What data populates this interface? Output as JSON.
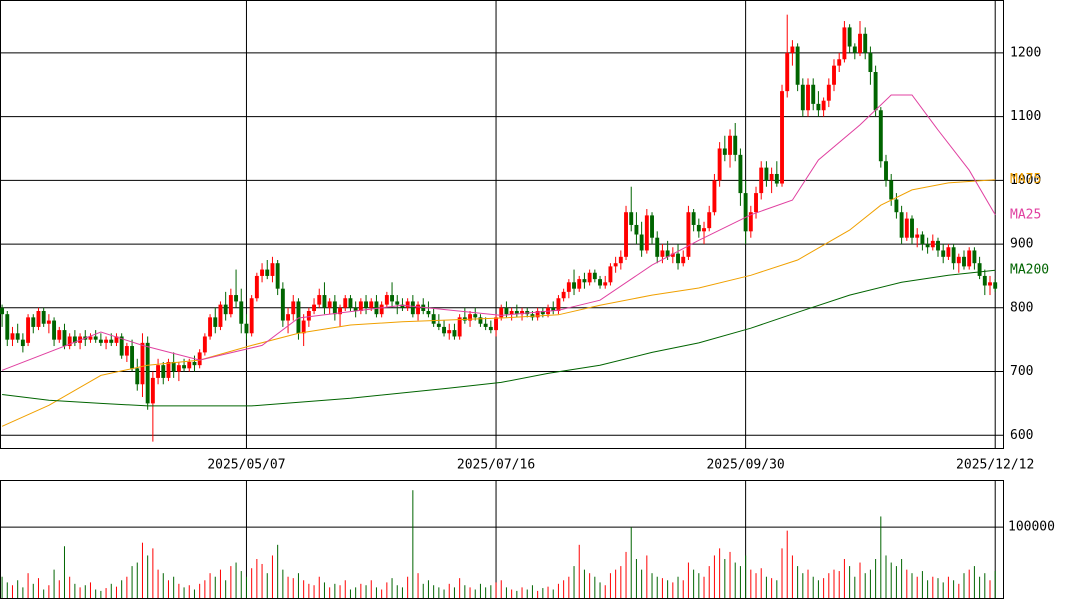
{
  "chart_data": {
    "type": "candlestick",
    "up_color": "#ff0000",
    "down_color": "#006400",
    "ylim": [
      580,
      1283
    ],
    "yticks": [
      600,
      700,
      800,
      900,
      1000,
      1100,
      1200
    ],
    "xlim": [
      -0.4,
      192.5
    ],
    "xticks": [
      {
        "value": 47,
        "label": "2025/05/07"
      },
      {
        "value": 95,
        "label": "2025/07/16"
      },
      {
        "value": 143,
        "label": "2025/09/30"
      },
      {
        "value": 191,
        "label": "2025/12/12"
      }
    ],
    "grid": true,
    "ohlc": [
      [
        800,
        805,
        770,
        790
      ],
      [
        790,
        795,
        740,
        750
      ],
      [
        750,
        770,
        740,
        760
      ],
      [
        760,
        775,
        745,
        750
      ],
      [
        750,
        760,
        730,
        740
      ],
      [
        745,
        790,
        740,
        785
      ],
      [
        785,
        790,
        760,
        770
      ],
      [
        770,
        800,
        765,
        795
      ],
      [
        795,
        800,
        770,
        775
      ],
      [
        775,
        790,
        760,
        780
      ],
      [
        780,
        785,
        740,
        750
      ],
      [
        750,
        770,
        745,
        765
      ],
      [
        765,
        775,
        735,
        740
      ],
      [
        740,
        760,
        735,
        755
      ],
      [
        755,
        765,
        740,
        745
      ],
      [
        745,
        760,
        735,
        755
      ],
      [
        755,
        765,
        740,
        750
      ],
      [
        750,
        760,
        745,
        755
      ],
      [
        755,
        765,
        745,
        750
      ],
      [
        750,
        760,
        740,
        745
      ],
      [
        745,
        755,
        735,
        750
      ],
      [
        750,
        760,
        740,
        745
      ],
      [
        745,
        760,
        740,
        755
      ],
      [
        755,
        760,
        720,
        725
      ],
      [
        725,
        745,
        715,
        740
      ],
      [
        740,
        750,
        700,
        705
      ],
      [
        705,
        720,
        670,
        680
      ],
      [
        680,
        760,
        660,
        745
      ],
      [
        745,
        755,
        640,
        650
      ],
      [
        650,
        700,
        590,
        690
      ],
      [
        690,
        720,
        680,
        710
      ],
      [
        710,
        715,
        680,
        690
      ],
      [
        690,
        720,
        685,
        715
      ],
      [
        715,
        730,
        690,
        700
      ],
      [
        700,
        715,
        685,
        710
      ],
      [
        710,
        720,
        700,
        705
      ],
      [
        705,
        720,
        700,
        715
      ],
      [
        715,
        725,
        700,
        710
      ],
      [
        710,
        735,
        705,
        730
      ],
      [
        730,
        760,
        725,
        755
      ],
      [
        755,
        790,
        750,
        785
      ],
      [
        785,
        800,
        760,
        770
      ],
      [
        770,
        810,
        765,
        805
      ],
      [
        805,
        825,
        780,
        790
      ],
      [
        790,
        830,
        785,
        820
      ],
      [
        820,
        860,
        800,
        810
      ],
      [
        810,
        830,
        760,
        775
      ],
      [
        775,
        790,
        750,
        760
      ],
      [
        760,
        820,
        755,
        815
      ],
      [
        815,
        855,
        810,
        850
      ],
      [
        850,
        870,
        840,
        860
      ],
      [
        860,
        875,
        845,
        850
      ],
      [
        850,
        880,
        840,
        870
      ],
      [
        870,
        875,
        820,
        830
      ],
      [
        830,
        840,
        770,
        780
      ],
      [
        780,
        800,
        760,
        790
      ],
      [
        790,
        820,
        780,
        810
      ],
      [
        810,
        815,
        750,
        760
      ],
      [
        760,
        790,
        740,
        780
      ],
      [
        780,
        800,
        770,
        795
      ],
      [
        795,
        815,
        790,
        805
      ],
      [
        805,
        830,
        800,
        820
      ],
      [
        820,
        840,
        790,
        800
      ],
      [
        800,
        815,
        790,
        810
      ],
      [
        810,
        820,
        780,
        790
      ],
      [
        790,
        805,
        770,
        800
      ],
      [
        800,
        820,
        795,
        815
      ],
      [
        815,
        820,
        795,
        800
      ],
      [
        800,
        810,
        785,
        795
      ],
      [
        795,
        815,
        790,
        810
      ],
      [
        810,
        820,
        790,
        800
      ],
      [
        800,
        815,
        795,
        810
      ],
      [
        810,
        820,
        785,
        790
      ],
      [
        790,
        810,
        785,
        805
      ],
      [
        805,
        825,
        800,
        820
      ],
      [
        820,
        840,
        800,
        810
      ],
      [
        810,
        820,
        790,
        805
      ],
      [
        805,
        815,
        795,
        800
      ],
      [
        800,
        815,
        795,
        810
      ],
      [
        810,
        820,
        785,
        790
      ],
      [
        790,
        810,
        780,
        805
      ],
      [
        805,
        815,
        790,
        795
      ],
      [
        795,
        810,
        785,
        790
      ],
      [
        790,
        800,
        770,
        775
      ],
      [
        775,
        790,
        765,
        770
      ],
      [
        770,
        780,
        755,
        760
      ],
      [
        760,
        775,
        750,
        765
      ],
      [
        765,
        775,
        750,
        755
      ],
      [
        755,
        790,
        750,
        785
      ],
      [
        785,
        800,
        775,
        780
      ],
      [
        780,
        795,
        770,
        790
      ],
      [
        790,
        800,
        780,
        785
      ],
      [
        785,
        790,
        770,
        775
      ],
      [
        775,
        785,
        765,
        770
      ],
      [
        770,
        780,
        760,
        765
      ],
      [
        765,
        790,
        755,
        785
      ],
      [
        785,
        805,
        780,
        800
      ],
      [
        800,
        810,
        785,
        790
      ],
      [
        790,
        800,
        780,
        795
      ],
      [
        795,
        805,
        785,
        790
      ],
      [
        790,
        800,
        780,
        795
      ],
      [
        795,
        800,
        785,
        790
      ],
      [
        790,
        795,
        780,
        785
      ],
      [
        785,
        800,
        780,
        795
      ],
      [
        795,
        800,
        785,
        790
      ],
      [
        790,
        805,
        785,
        800
      ],
      [
        800,
        810,
        790,
        795
      ],
      [
        795,
        820,
        790,
        815
      ],
      [
        815,
        830,
        810,
        825
      ],
      [
        825,
        845,
        815,
        840
      ],
      [
        840,
        860,
        820,
        830
      ],
      [
        830,
        850,
        825,
        845
      ],
      [
        845,
        855,
        830,
        840
      ],
      [
        840,
        860,
        835,
        855
      ],
      [
        855,
        860,
        840,
        845
      ],
      [
        845,
        850,
        830,
        835
      ],
      [
        835,
        850,
        830,
        840
      ],
      [
        840,
        870,
        835,
        865
      ],
      [
        865,
        880,
        855,
        870
      ],
      [
        870,
        890,
        860,
        880
      ],
      [
        880,
        960,
        875,
        950
      ],
      [
        950,
        990,
        920,
        930
      ],
      [
        930,
        950,
        900,
        915
      ],
      [
        915,
        935,
        880,
        890
      ],
      [
        890,
        955,
        885,
        945
      ],
      [
        945,
        950,
        900,
        910
      ],
      [
        910,
        920,
        870,
        880
      ],
      [
        880,
        900,
        870,
        890
      ],
      [
        890,
        905,
        875,
        880
      ],
      [
        880,
        895,
        870,
        885
      ],
      [
        885,
        900,
        860,
        870
      ],
      [
        870,
        890,
        865,
        880
      ],
      [
        880,
        960,
        875,
        950
      ],
      [
        950,
        955,
        920,
        930
      ],
      [
        930,
        940,
        910,
        920
      ],
      [
        920,
        935,
        900,
        925
      ],
      [
        925,
        960,
        920,
        950
      ],
      [
        950,
        1010,
        945,
        1000
      ],
      [
        1000,
        1060,
        990,
        1050
      ],
      [
        1050,
        1070,
        1030,
        1040
      ],
      [
        1040,
        1080,
        1020,
        1070
      ],
      [
        1070,
        1090,
        1030,
        1040
      ],
      [
        1040,
        1050,
        960,
        980
      ],
      [
        980,
        1000,
        900,
        920
      ],
      [
        920,
        960,
        910,
        950
      ],
      [
        950,
        990,
        940,
        980
      ],
      [
        980,
        1030,
        970,
        1020
      ],
      [
        1020,
        1030,
        990,
        1000
      ],
      [
        1000,
        1020,
        980,
        1010
      ],
      [
        1010,
        1030,
        990,
        995
      ],
      [
        995,
        1150,
        990,
        1140
      ],
      [
        1140,
        1260,
        1130,
        1200
      ],
      [
        1200,
        1220,
        1180,
        1210
      ],
      [
        1210,
        1215,
        1140,
        1150
      ],
      [
        1150,
        1160,
        1100,
        1110
      ],
      [
        1110,
        1160,
        1100,
        1150
      ],
      [
        1150,
        1160,
        1110,
        1120
      ],
      [
        1120,
        1140,
        1100,
        1110
      ],
      [
        1110,
        1130,
        1100,
        1125
      ],
      [
        1125,
        1160,
        1115,
        1150
      ],
      [
        1150,
        1190,
        1140,
        1180
      ],
      [
        1180,
        1200,
        1170,
        1190
      ],
      [
        1190,
        1250,
        1185,
        1240
      ],
      [
        1240,
        1245,
        1200,
        1210
      ],
      [
        1210,
        1215,
        1190,
        1200
      ],
      [
        1200,
        1250,
        1195,
        1230
      ],
      [
        1230,
        1240,
        1190,
        1200
      ],
      [
        1200,
        1210,
        1150,
        1170
      ],
      [
        1170,
        1180,
        1100,
        1110
      ],
      [
        1110,
        1115,
        1020,
        1030
      ],
      [
        1030,
        1040,
        990,
        1000
      ],
      [
        1000,
        1010,
        960,
        970
      ],
      [
        970,
        980,
        940,
        950
      ],
      [
        950,
        960,
        900,
        910
      ],
      [
        910,
        950,
        905,
        940
      ],
      [
        940,
        945,
        900,
        910
      ],
      [
        910,
        925,
        895,
        915
      ],
      [
        915,
        920,
        890,
        900
      ],
      [
        900,
        910,
        885,
        895
      ],
      [
        895,
        915,
        890,
        905
      ],
      [
        905,
        910,
        880,
        890
      ],
      [
        890,
        900,
        870,
        880
      ],
      [
        880,
        900,
        875,
        895
      ],
      [
        895,
        900,
        860,
        870
      ],
      [
        870,
        885,
        855,
        880
      ],
      [
        880,
        890,
        860,
        865
      ],
      [
        865,
        895,
        860,
        890
      ],
      [
        890,
        895,
        860,
        870
      ],
      [
        870,
        880,
        845,
        850
      ],
      [
        850,
        860,
        820,
        835
      ],
      [
        835,
        850,
        820,
        840
      ],
      [
        840,
        845,
        825,
        830
      ]
    ],
    "series": [
      {
        "name": "MA75",
        "color": "#f0a000",
        "x": [
          0,
          9,
          19,
          28,
          38,
          48,
          57,
          67,
          77,
          96,
          107,
          115,
          125,
          134,
          144,
          153,
          163,
          169,
          175,
          182,
          191
        ],
        "values": [
          614,
          647,
          694,
          710,
          718,
          741,
          760,
          773,
          778,
          784,
          789,
          804,
          820,
          831,
          851,
          875,
          922,
          961,
          985,
          996,
          1001
        ]
      },
      {
        "name": "MA25",
        "color": "#e040a0",
        "x": [
          0,
          19,
          27,
          38,
          50,
          57,
          77,
          96,
          107,
          115,
          125,
          134,
          144,
          152,
          157,
          165,
          171,
          175,
          180,
          186,
          191
        ],
        "values": [
          702,
          762,
          741,
          718,
          741,
          784,
          804,
          788,
          796,
          812,
          867,
          906,
          946,
          969,
          1032,
          1087,
          1134,
          1134,
          1079,
          1016,
          946
        ]
      },
      {
        "name": "MA200",
        "color": "#006400",
        "x": [
          0,
          9,
          19,
          28,
          48,
          67,
          86,
          96,
          105,
          115,
          125,
          134,
          144,
          153,
          163,
          173,
          182,
          191
        ],
        "values": [
          664,
          655,
          650,
          646,
          646,
          658,
          674,
          683,
          697,
          710,
          730,
          745,
          768,
          793,
          820,
          840,
          851,
          859
        ]
      }
    ],
    "volume": {
      "ylim": [
        0,
        165000
      ],
      "yticks": [
        100000
      ],
      "values": [
        30000,
        22000,
        18000,
        25000,
        15000,
        35000,
        20000,
        28000,
        12000,
        18000,
        40000,
        25000,
        73000,
        30000,
        20000,
        15000,
        18000,
        22000,
        12000,
        10000,
        14000,
        20000,
        16000,
        25000,
        30000,
        45000,
        50000,
        78000,
        60000,
        70000,
        40000,
        35000,
        25000,
        30000,
        20000,
        15000,
        18000,
        12000,
        20000,
        25000,
        35000,
        30000,
        40000,
        25000,
        45000,
        50000,
        38000,
        30000,
        42000,
        55000,
        48000,
        35000,
        60000,
        75000,
        40000,
        30000,
        28000,
        35000,
        25000,
        20000,
        18000,
        30000,
        22000,
        15000,
        20000,
        18000,
        25000,
        12000,
        15000,
        20000,
        18000,
        25000,
        15000,
        12000,
        22000,
        28000,
        18000,
        15000,
        30000,
        152000,
        35000,
        20000,
        25000,
        18000,
        15000,
        12000,
        20000,
        15000,
        28000,
        18000,
        15000,
        12000,
        20000,
        15000,
        18000,
        22000,
        25000,
        15000,
        12000,
        10000,
        15000,
        12000,
        18000,
        10000,
        14000,
        16000,
        12000,
        20000,
        25000,
        30000,
        45000,
        75000,
        40000,
        35000,
        30000,
        22000,
        18000,
        35000,
        40000,
        45000,
        65000,
        100000,
        55000,
        40000,
        60000,
        35000,
        30000,
        28000,
        25000,
        22000,
        30000,
        25000,
        50000,
        40000,
        35000,
        30000,
        45000,
        60000,
        70000,
        55000,
        65000,
        50000,
        45000,
        60000,
        40000,
        35000,
        42000,
        30000,
        28000,
        25000,
        70000,
        95000,
        60000,
        45000,
        35000,
        40000,
        30000,
        25000,
        28000,
        35000,
        40000,
        38000,
        55000,
        45000,
        30000,
        50000,
        35000,
        40000,
        55000,
        115000,
        60000,
        50000,
        45000,
        55000,
        40000,
        35000,
        30000,
        38000,
        25000,
        30000,
        28000,
        22000,
        30000,
        25000,
        20000,
        35000,
        40000,
        45000,
        30000,
        35000,
        25000,
        38000
      ]
    }
  }
}
